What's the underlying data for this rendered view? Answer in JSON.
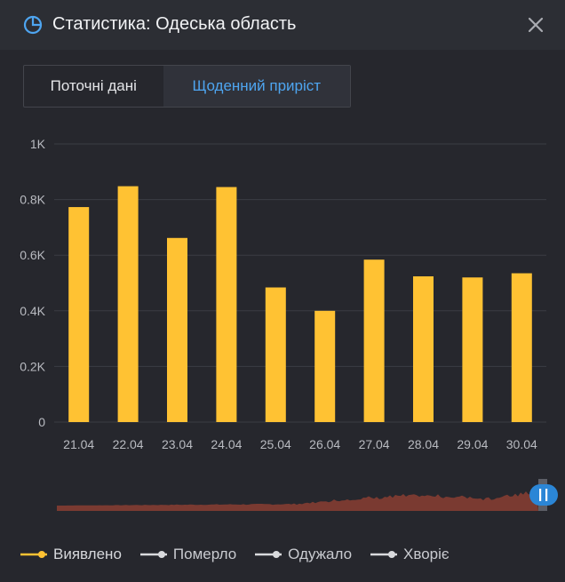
{
  "header": {
    "title": "Статистика: Одеська область",
    "icon": "pie-chart-icon",
    "close_icon": "close-icon"
  },
  "tabs": [
    {
      "label": "Поточні дані",
      "active": false
    },
    {
      "label": "Щоденний приріст",
      "active": true
    }
  ],
  "colors": {
    "accent": "#4ea5f0",
    "bar": "#ffc233",
    "overview_area": "#7a3a31",
    "handle": "#2b86d6"
  },
  "chart_data": {
    "type": "bar",
    "categories": [
      "21.04",
      "22.04",
      "23.04",
      "24.04",
      "25.04",
      "26.04",
      "27.04",
      "28.04",
      "29.04",
      "30.04"
    ],
    "series": [
      {
        "name": "Виявлено",
        "values": [
          773,
          848,
          662,
          845,
          484,
          400,
          584,
          524,
          520,
          535
        ]
      }
    ],
    "yticks": [
      "0",
      "0.2K",
      "0.4K",
      "0.6K",
      "0.8K",
      "1K"
    ],
    "ylim": [
      0,
      1000
    ],
    "grid": true
  },
  "legend": [
    {
      "label": "Виявлено",
      "color": "#ffc233",
      "active": true
    },
    {
      "label": "Померло",
      "color": "#d9dadd",
      "active": false
    },
    {
      "label": "Одужало",
      "color": "#d9dadd",
      "active": false
    },
    {
      "label": "Хворіє",
      "color": "#d9dadd",
      "active": false
    }
  ]
}
